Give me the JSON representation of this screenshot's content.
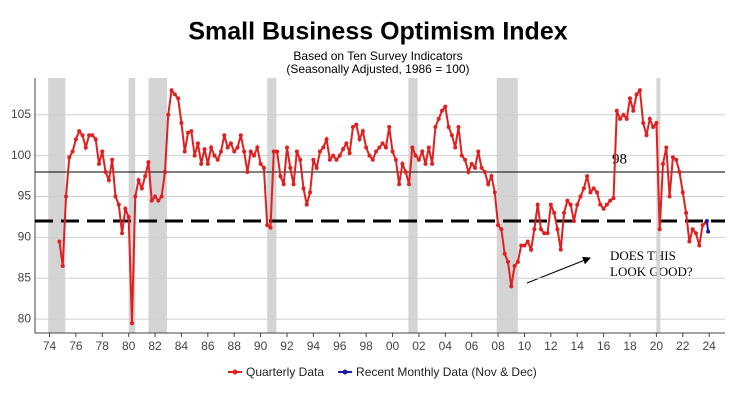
{
  "chart_data": {
    "type": "line",
    "title": "Small Business Optimism Index",
    "subtitle": [
      "Based on Ten Survey Indicators",
      "(Seasonally Adjusted, 1986 = 100)"
    ],
    "xlim": [
      1972.9,
      2025.2
    ],
    "ylim": [
      78.3,
      109.5
    ],
    "xticks": [
      {
        "value": 1974,
        "label": "74"
      },
      {
        "value": 1976,
        "label": "76"
      },
      {
        "value": 1978,
        "label": "78"
      },
      {
        "value": 1980,
        "label": "80"
      },
      {
        "value": 1982,
        "label": "82"
      },
      {
        "value": 1984,
        "label": "84"
      },
      {
        "value": 1986,
        "label": "86"
      },
      {
        "value": 1988,
        "label": "88"
      },
      {
        "value": 1990,
        "label": "90"
      },
      {
        "value": 1992,
        "label": "92"
      },
      {
        "value": 1994,
        "label": "94"
      },
      {
        "value": 1996,
        "label": "96"
      },
      {
        "value": 1998,
        "label": "98"
      },
      {
        "value": 2000,
        "label": "00"
      },
      {
        "value": 2002,
        "label": "02"
      },
      {
        "value": 2004,
        "label": "04"
      },
      {
        "value": 2006,
        "label": "06"
      },
      {
        "value": 2008,
        "label": "08"
      },
      {
        "value": 2010,
        "label": "10"
      },
      {
        "value": 2012,
        "label": "12"
      },
      {
        "value": 2014,
        "label": "14"
      },
      {
        "value": 2016,
        "label": "16"
      },
      {
        "value": 2018,
        "label": "18"
      },
      {
        "value": 2020,
        "label": "20"
      },
      {
        "value": 2022,
        "label": "22"
      },
      {
        "value": 2024,
        "label": "24"
      }
    ],
    "yticks": [
      80,
      85,
      90,
      95,
      100,
      105
    ],
    "grid": true,
    "shaded_periods": [
      [
        1973.9,
        1975.2
      ],
      [
        1980.0,
        1980.5
      ],
      [
        1981.5,
        1982.9
      ],
      [
        1990.5,
        1991.2
      ],
      [
        2001.2,
        2001.9
      ],
      [
        2007.9,
        2009.5
      ],
      [
        2020.0,
        2020.3
      ]
    ],
    "reference_lines": [
      {
        "value": 98,
        "label": "98",
        "style": "solid"
      },
      {
        "value": 92,
        "style": "dashed"
      }
    ],
    "annotation": [
      "DOES THIS",
      "LOOK GOOD?"
    ],
    "series": [
      {
        "name": "Quarterly Data",
        "color": "#e02020",
        "x": [
          1974.75,
          1975,
          1975.25,
          1975.5,
          1975.75,
          1976,
          1976.25,
          1976.5,
          1976.75,
          1977,
          1977.25,
          1977.5,
          1977.75,
          1978,
          1978.25,
          1978.5,
          1978.75,
          1979,
          1979.25,
          1979.5,
          1979.75,
          1980,
          1980.25,
          1980.5,
          1980.75,
          1981,
          1981.25,
          1981.5,
          1981.75,
          1982,
          1982.25,
          1982.5,
          1982.75,
          1983,
          1983.25,
          1983.5,
          1983.75,
          1984,
          1984.25,
          1984.5,
          1984.75,
          1985,
          1985.25,
          1985.5,
          1985.75,
          1986,
          1986.25,
          1986.5,
          1986.75,
          1987,
          1987.25,
          1987.5,
          1987.75,
          1988,
          1988.25,
          1988.5,
          1988.75,
          1989,
          1989.25,
          1989.5,
          1989.75,
          1990,
          1990.25,
          1990.5,
          1990.75,
          1991,
          1991.25,
          1991.5,
          1991.75,
          1992,
          1992.25,
          1992.5,
          1992.75,
          1993,
          1993.25,
          1993.5,
          1993.75,
          1994,
          1994.25,
          1994.5,
          1994.75,
          1995,
          1995.25,
          1995.5,
          1995.75,
          1996,
          1996.25,
          1996.5,
          1996.75,
          1997,
          1997.25,
          1997.5,
          1997.75,
          1998,
          1998.25,
          1998.5,
          1998.75,
          1999,
          1999.25,
          1999.5,
          1999.75,
          2000,
          2000.25,
          2000.5,
          2000.75,
          2001,
          2001.25,
          2001.5,
          2001.75,
          2002,
          2002.25,
          2002.5,
          2002.75,
          2003,
          2003.25,
          2003.5,
          2003.75,
          2004,
          2004.25,
          2004.5,
          2004.75,
          2005,
          2005.25,
          2005.5,
          2005.75,
          2006,
          2006.25,
          2006.5,
          2006.75,
          2007,
          2007.25,
          2007.5,
          2007.75,
          2008,
          2008.25,
          2008.5,
          2008.75,
          2009,
          2009.25,
          2009.5,
          2009.75,
          2010,
          2010.25,
          2010.5,
          2010.75,
          2011,
          2011.25,
          2011.5,
          2011.75,
          2012,
          2012.25,
          2012.5,
          2012.75,
          2013,
          2013.25,
          2013.5,
          2013.75,
          2014,
          2014.25,
          2014.5,
          2014.75,
          2015,
          2015.25,
          2015.5,
          2015.75,
          2016,
          2016.25,
          2016.5,
          2016.75,
          2017,
          2017.25,
          2017.5,
          2017.75,
          2018,
          2018.25,
          2018.5,
          2018.75,
          2019,
          2019.25,
          2019.5,
          2019.75,
          2020,
          2020.25,
          2020.5,
          2020.75,
          2021,
          2021.25,
          2021.5,
          2021.75,
          2022,
          2022.25,
          2022.5,
          2022.75,
          2023,
          2023.25,
          2023.5,
          2023.75
        ],
        "values": [
          89.5,
          86.5,
          95,
          99.8,
          100.5,
          102,
          103,
          102.5,
          101,
          102.5,
          102.5,
          102,
          99,
          100.5,
          98,
          97,
          99.5,
          95,
          94,
          90.5,
          93.5,
          92.5,
          79.5,
          95,
          97,
          96,
          97.5,
          99.2,
          94.5,
          95,
          94.5,
          95,
          98,
          105,
          108,
          107.5,
          107,
          104,
          100.5,
          102.8,
          103,
          100,
          101.5,
          99,
          100.8,
          99,
          101,
          100,
          99.5,
          100.5,
          102.5,
          101,
          101.5,
          100.5,
          101,
          102.5,
          100.5,
          98,
          100.5,
          100,
          101,
          99,
          98.5,
          91.5,
          91.2,
          100.5,
          100.5,
          97.5,
          96.5,
          101,
          98.5,
          96.5,
          100.5,
          99.5,
          96,
          94,
          95.5,
          99.5,
          98.5,
          100.5,
          101,
          102,
          99.5,
          100,
          99.5,
          100,
          100.8,
          101.5,
          100.3,
          103.5,
          103.8,
          102,
          103,
          101,
          100,
          99.5,
          100.5,
          101,
          101.5,
          101,
          103.5,
          100.5,
          99.5,
          96.5,
          99,
          98,
          96.5,
          101,
          100,
          99.5,
          100.5,
          99,
          101,
          99,
          103.5,
          104.5,
          105.5,
          106,
          103.5,
          102.5,
          101,
          103.5,
          100,
          99.5,
          98,
          99,
          98.5,
          100.5,
          98.5,
          98,
          96.5,
          97.5,
          95.5,
          91.5,
          91,
          88,
          87,
          84,
          86.5,
          87,
          89,
          89,
          89.5,
          88.5,
          91,
          94,
          91,
          90.5,
          90.5,
          94,
          93,
          91,
          88.5,
          93,
          94.5,
          94,
          92,
          94,
          95,
          96,
          97.5,
          95.5,
          96,
          95.5,
          94,
          93.5,
          94,
          94.5,
          94.8,
          105.5,
          104.5,
          105,
          104.5,
          107,
          105.5,
          107.5,
          108,
          104,
          102.5,
          104.5,
          103.5,
          104,
          91,
          99,
          101,
          95,
          99.8,
          99.5,
          98,
          95.5,
          93,
          89.5,
          91,
          90.5,
          89,
          91.5,
          91.8
        ]
      },
      {
        "name": "Recent Monthly Data (Nov & Dec)",
        "color": "#1a1aa8",
        "x": [
          2023.83,
          2023.92
        ],
        "values": [
          92,
          90.7
        ]
      }
    ]
  }
}
